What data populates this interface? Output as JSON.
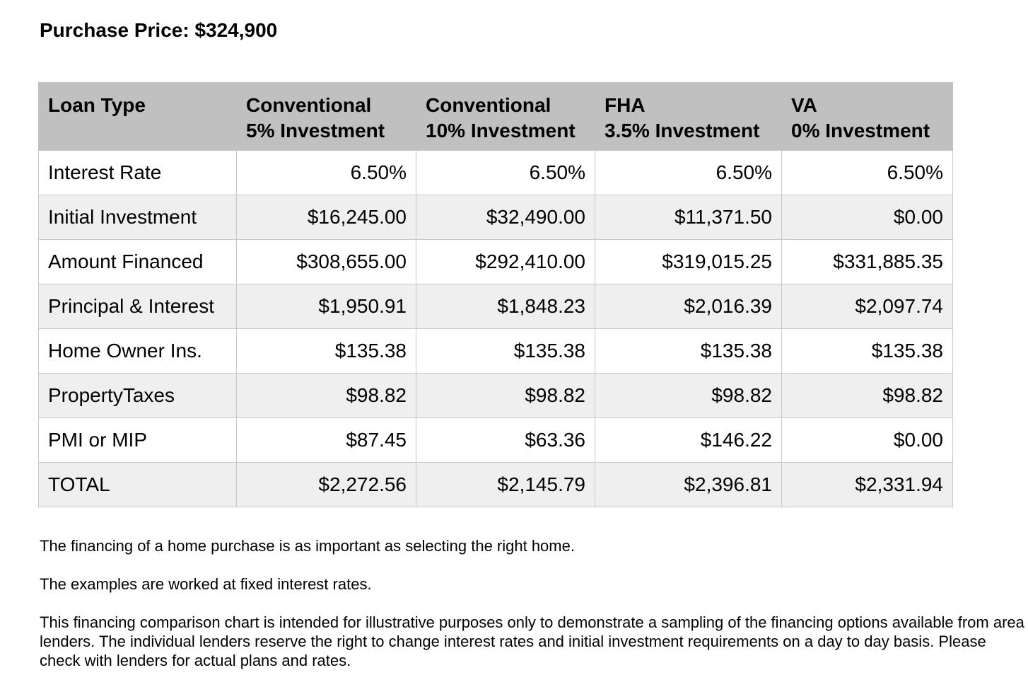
{
  "title": "Purchase Price: $324,900",
  "table": {
    "header": {
      "label": "Loan Type",
      "columns": [
        {
          "line1": "Conventional",
          "line2": "5% Investment"
        },
        {
          "line1": "Conventional",
          "line2": "10% Investment"
        },
        {
          "line1": "FHA",
          "line2": "3.5% Investment"
        },
        {
          "line1": "VA",
          "line2": "0% Investment"
        }
      ]
    },
    "rows": [
      {
        "label": "Interest Rate",
        "values": [
          "6.50%",
          "6.50%",
          "6.50%",
          "6.50%"
        ]
      },
      {
        "label": "Initial Investment",
        "values": [
          "$16,245.00",
          "$32,490.00",
          "$11,371.50",
          "$0.00"
        ]
      },
      {
        "label": "Amount Financed",
        "values": [
          "$308,655.00",
          "$292,410.00",
          "$319,015.25",
          "$331,885.35"
        ]
      },
      {
        "label": "Principal & Interest",
        "values": [
          "$1,950.91",
          "$1,848.23",
          "$2,016.39",
          "$2,097.74"
        ]
      },
      {
        "label": "Home Owner Ins.",
        "values": [
          "$135.38",
          "$135.38",
          "$135.38",
          "$135.38"
        ]
      },
      {
        "label": "PropertyTaxes",
        "values": [
          "$98.82",
          "$98.82",
          "$98.82",
          "$98.82"
        ]
      },
      {
        "label": "PMI or MIP",
        "values": [
          "$87.45",
          "$63.36",
          "$146.22",
          "$0.00"
        ]
      },
      {
        "label": "TOTAL",
        "values": [
          "$2,272.56",
          "$2,145.79",
          "$2,396.81",
          "$2,331.94"
        ]
      }
    ]
  },
  "notes": [
    "The financing of a home purchase is as important as selecting the right home.",
    "The examples are worked at fixed interest rates.",
    "This financing comparison chart is intended for illustrative purposes only to demonstrate a sampling of the financing options available from area lenders. The individual lenders reserve the right to change interest rates and initial investment requirements on a day to day basis. Please check with lenders for actual plans and rates."
  ]
}
